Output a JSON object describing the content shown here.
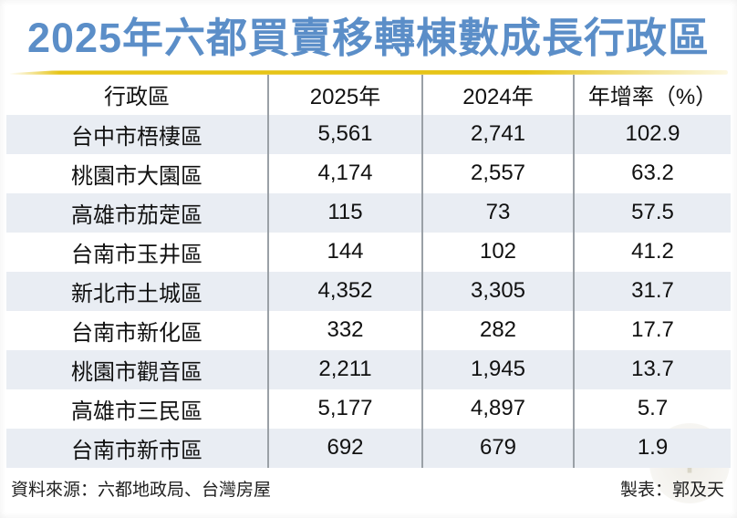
{
  "title": "2025年六都買賣移轉棟數成長行政區",
  "table": {
    "headers": [
      "行政區",
      "2025年",
      "2024年",
      "年增率（%）"
    ],
    "rows": [
      [
        "台中市梧棲區",
        "5,561",
        "2,741",
        "102.9"
      ],
      [
        "桃園市大園區",
        "4,174",
        "2,557",
        "63.2"
      ],
      [
        "高雄市茄萣區",
        "115",
        "73",
        "57.5"
      ],
      [
        "台南市玉井區",
        "144",
        "102",
        "41.2"
      ],
      [
        "新北市土城區",
        "4,352",
        "3,305",
        "31.7"
      ],
      [
        "台南市新化區",
        "332",
        "282",
        "17.7"
      ],
      [
        "桃園市觀音區",
        "2,211",
        "1,945",
        "13.7"
      ],
      [
        "高雄市三民區",
        "5,177",
        "4,897",
        "5.7"
      ],
      [
        "台南市新市區",
        "692",
        "679",
        "1.9"
      ]
    ]
  },
  "footer": {
    "source": "資料來源：六都地政局、台灣房屋",
    "credit": "製表：郭及天"
  },
  "icons": {
    "watermark_glyph": "+"
  },
  "colors": {
    "title_blue": "#5b8ec8",
    "underline_gold": "#e6c417",
    "row_shade": "#e9edf3",
    "divider_gray": "#9aa0a6",
    "text_black": "#111111"
  },
  "chart_data": {
    "type": "table",
    "title": "2025年六都買賣移轉棟數成長行政區",
    "columns": [
      "行政區",
      "2025年",
      "2024年",
      "年增率（%）"
    ],
    "rows": [
      {
        "district": "台中市梧棲區",
        "y2025": 5561,
        "y2024": 2741,
        "yoy_growth_pct": 102.9
      },
      {
        "district": "桃園市大園區",
        "y2025": 4174,
        "y2024": 2557,
        "yoy_growth_pct": 63.2
      },
      {
        "district": "高雄市茄萣區",
        "y2025": 115,
        "y2024": 73,
        "yoy_growth_pct": 57.5
      },
      {
        "district": "台南市玉井區",
        "y2025": 144,
        "y2024": 102,
        "yoy_growth_pct": 41.2
      },
      {
        "district": "新北市土城區",
        "y2025": 4352,
        "y2024": 3305,
        "yoy_growth_pct": 31.7
      },
      {
        "district": "台南市新化區",
        "y2025": 332,
        "y2024": 282,
        "yoy_growth_pct": 17.7
      },
      {
        "district": "桃園市觀音區",
        "y2025": 2211,
        "y2024": 1945,
        "yoy_growth_pct": 13.7
      },
      {
        "district": "高雄市三民區",
        "y2025": 5177,
        "y2024": 4897,
        "yoy_growth_pct": 5.7
      },
      {
        "district": "台南市新市區",
        "y2025": 692,
        "y2024": 679,
        "yoy_growth_pct": 1.9
      }
    ],
    "source_note": "資料來源：六都地政局、台灣房屋",
    "credit_note": "製表：郭及天"
  }
}
